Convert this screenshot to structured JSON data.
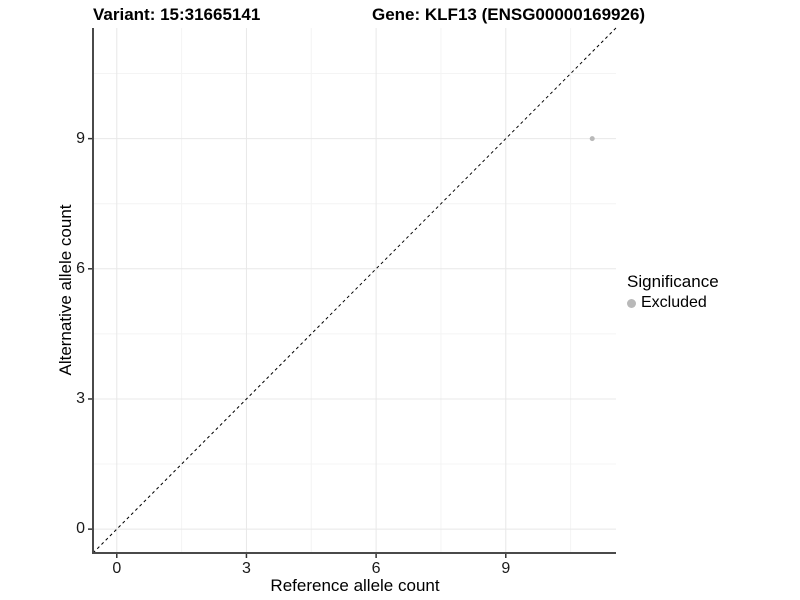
{
  "titles": {
    "variant": "Variant: 15:31665141",
    "gene": "Gene: KLF13 (ENSG00000169926)"
  },
  "chart_data": {
    "type": "scatter",
    "title_left": "Variant: 15:31665141",
    "title_right": "Gene: KLF13 (ENSG00000169926)",
    "xlabel": "Reference allele count",
    "ylabel": "Alternative allele count",
    "xlim": [
      -0.55,
      11.55
    ],
    "ylim": [
      -0.55,
      11.55
    ],
    "xticks": [
      0,
      3,
      6,
      9
    ],
    "yticks": [
      0,
      3,
      6,
      9
    ],
    "xticks_minor": [
      1.5,
      4.5,
      7.5,
      10.5
    ],
    "yticks_minor": [
      1.5,
      4.5,
      7.5,
      10.5
    ],
    "grid": true,
    "reference_line": {
      "slope": 1,
      "intercept": 0,
      "style": "dashed",
      "color": "#000000"
    },
    "series": [
      {
        "name": "Excluded",
        "color": "#b9b9b9",
        "points": [
          {
            "x": 11,
            "y": 9
          }
        ]
      }
    ],
    "legend": {
      "title": "Significance",
      "position": "right",
      "entries": [
        {
          "label": "Excluded",
          "color": "#b9b9b9"
        }
      ]
    }
  },
  "colors": {
    "background": "#ffffff",
    "axis_line": "#4a4a4a",
    "tick_mark": "#333333",
    "grid_major": "#e8e8e8",
    "grid_minor": "#f4f4f4",
    "point": "#b9b9b9",
    "reference_line": "#000000"
  }
}
